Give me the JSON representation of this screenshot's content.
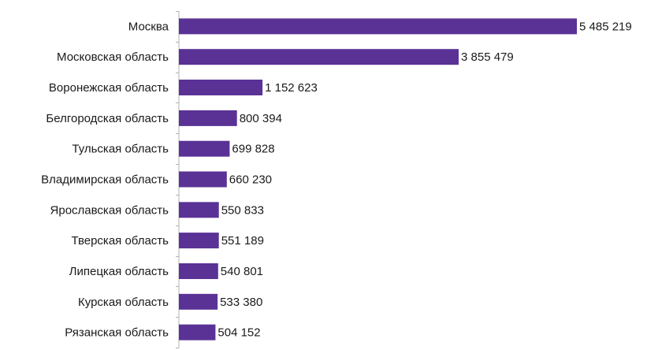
{
  "chart_data": {
    "type": "bar",
    "orientation": "horizontal",
    "title": "",
    "xlabel": "",
    "ylabel": "",
    "grid": false,
    "legend": "none",
    "bar_color": "#5a3296",
    "xlim": [
      0,
      5485219
    ],
    "categories": [
      "Москва",
      "Московская область",
      "Воронежская область",
      "Белгородская область",
      "Тульская область",
      "Владимирская область",
      "Ярославская область",
      "Тверская область",
      "Липецкая область",
      "Курская область",
      "Рязанская область"
    ],
    "values": [
      5485219,
      3855479,
      1152623,
      800394,
      699828,
      660230,
      550833,
      551189,
      540801,
      533380,
      504152
    ],
    "value_labels": [
      "5 485 219",
      "3 855 479",
      "1 152 623",
      "800 394",
      "699 828",
      "660 230",
      "550 833",
      "551 189",
      "540 801",
      "533 380",
      "504 152"
    ]
  }
}
